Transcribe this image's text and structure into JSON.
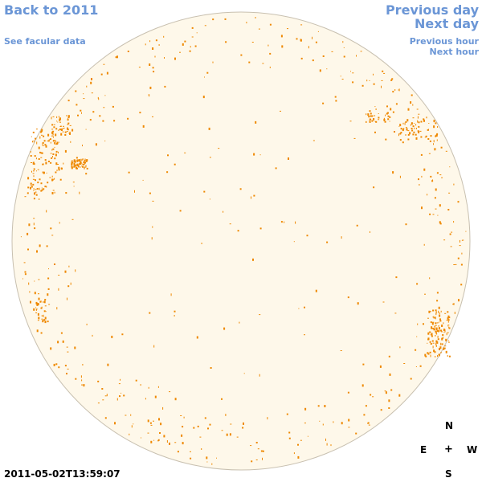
{
  "nav": {
    "back_label": "Back to 2011",
    "facular_label": "See facular data",
    "prev_day_label": "Previous day",
    "next_day_label": "Next day",
    "prev_hour_label": "Previous hour",
    "next_hour_label": "Next hour"
  },
  "compass": {
    "north": "N",
    "east": "E",
    "center": "+",
    "west": "W",
    "south": "S"
  },
  "timestamp": "2011-05-02T13:59:07",
  "colors": {
    "link": "#6b96d6",
    "disk_fill": "#fef8ea",
    "disk_edge": "#c8c0b0",
    "facula": "#ee8800"
  }
}
